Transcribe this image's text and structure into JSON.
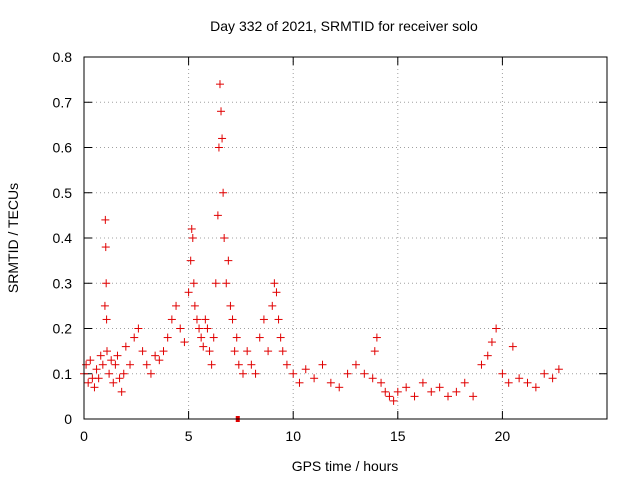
{
  "chart_data": {
    "type": "scatter",
    "title": "Day 332 of 2021, SRMTID for receiver solo",
    "xlabel": "GPS time / hours",
    "ylabel": "SRMTID / TECUs",
    "xlim": [
      0,
      25
    ],
    "ylim": [
      0,
      0.8
    ],
    "xticks": [
      "0",
      "5",
      "10",
      "15",
      "20"
    ],
    "xtick_values": [
      0,
      5,
      10,
      15,
      20
    ],
    "yticks": [
      "0",
      "0.1",
      "0.2",
      "0.3",
      "0.4",
      "0.5",
      "0.6",
      "0.7",
      "0.8"
    ],
    "ytick_values": [
      0,
      0.1,
      0.2,
      0.3,
      0.4,
      0.5,
      0.6,
      0.7,
      0.8
    ],
    "grid": true,
    "marker": "+",
    "color": "#e00000",
    "series": [
      {
        "name": "SRMTID",
        "x": [
          0.0,
          0.1,
          0.2,
          0.3,
          0.4,
          0.5,
          0.6,
          0.7,
          0.8,
          0.9,
          1.0,
          1.02,
          1.04,
          1.06,
          1.08,
          1.1,
          1.2,
          1.3,
          1.4,
          1.5,
          1.6,
          1.7,
          1.8,
          1.9,
          2.0,
          2.2,
          2.4,
          2.6,
          2.8,
          3.0,
          3.2,
          3.4,
          3.6,
          3.8,
          4.0,
          4.2,
          4.4,
          4.6,
          4.8,
          5.0,
          5.1,
          5.15,
          5.2,
          5.25,
          5.3,
          5.4,
          5.5,
          5.6,
          5.7,
          5.8,
          5.9,
          6.0,
          6.1,
          6.2,
          6.3,
          6.4,
          6.45,
          6.5,
          6.55,
          6.6,
          6.65,
          6.7,
          6.8,
          6.9,
          7.0,
          7.1,
          7.2,
          7.3,
          7.4,
          7.6,
          7.8,
          8.0,
          8.2,
          8.4,
          8.6,
          8.8,
          9.0,
          9.1,
          9.2,
          9.3,
          9.4,
          9.5,
          9.7,
          10.0,
          10.3,
          10.6,
          11.0,
          11.4,
          11.8,
          12.2,
          12.6,
          13.0,
          13.4,
          13.8,
          13.9,
          14.0,
          14.2,
          14.4,
          14.6,
          14.8,
          15.0,
          15.4,
          15.8,
          16.2,
          16.6,
          17.0,
          17.4,
          17.8,
          18.2,
          18.6,
          19.0,
          19.3,
          19.5,
          19.7,
          20.0,
          20.3,
          20.5,
          20.8,
          21.2,
          21.6,
          22.0,
          22.4,
          22.7
        ],
        "y": [
          0.1,
          0.12,
          0.08,
          0.13,
          0.09,
          0.07,
          0.11,
          0.09,
          0.14,
          0.12,
          0.25,
          0.44,
          0.38,
          0.3,
          0.22,
          0.15,
          0.1,
          0.13,
          0.08,
          0.12,
          0.14,
          0.09,
          0.06,
          0.1,
          0.16,
          0.12,
          0.18,
          0.2,
          0.15,
          0.12,
          0.1,
          0.14,
          0.13,
          0.15,
          0.18,
          0.22,
          0.25,
          0.2,
          0.17,
          0.28,
          0.35,
          0.42,
          0.4,
          0.3,
          0.25,
          0.22,
          0.2,
          0.18,
          0.16,
          0.22,
          0.2,
          0.15,
          0.12,
          0.18,
          0.3,
          0.45,
          0.6,
          0.74,
          0.68,
          0.62,
          0.5,
          0.4,
          0.3,
          0.35,
          0.25,
          0.22,
          0.15,
          0.18,
          0.12,
          0.1,
          0.15,
          0.12,
          0.1,
          0.18,
          0.22,
          0.15,
          0.25,
          0.3,
          0.28,
          0.22,
          0.18,
          0.15,
          0.12,
          0.1,
          0.08,
          0.11,
          0.09,
          0.12,
          0.08,
          0.07,
          0.1,
          0.12,
          0.1,
          0.09,
          0.15,
          0.18,
          0.08,
          0.06,
          0.05,
          0.04,
          0.06,
          0.07,
          0.05,
          0.08,
          0.06,
          0.07,
          0.05,
          0.06,
          0.08,
          0.05,
          0.12,
          0.14,
          0.17,
          0.2,
          0.1,
          0.08,
          0.16,
          0.09,
          0.08,
          0.07,
          0.1,
          0.09,
          0.11
        ]
      }
    ],
    "outlier_marker": {
      "x": 7.35,
      "y": 0.0
    }
  }
}
